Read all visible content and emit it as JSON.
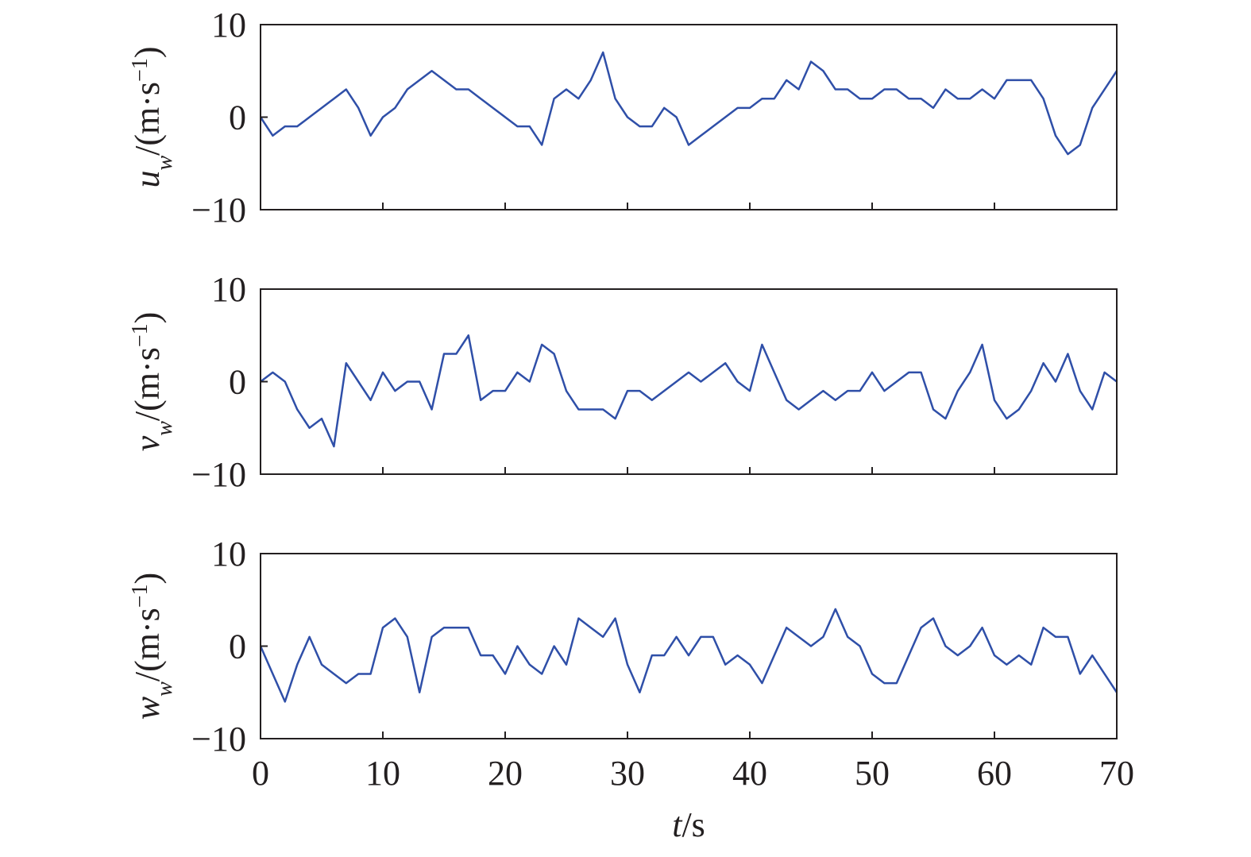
{
  "chart_data": [
    {
      "type": "line",
      "ylabel": [
        "u",
        "w",
        "/(m·s",
        "−1",
        ")"
      ],
      "color": "#2f4fa8",
      "xlim": [
        0,
        70
      ],
      "xticks": [
        0,
        10,
        20,
        30,
        40,
        50,
        60,
        70
      ],
      "ylim": [
        -10,
        10
      ],
      "yticks": [
        {
          "value": -10,
          "label": "−10"
        },
        0,
        10
      ],
      "x": [
        0,
        1,
        2,
        3,
        4,
        5,
        6,
        7,
        8,
        9,
        10,
        11,
        12,
        13,
        14,
        15,
        16,
        17,
        18,
        19,
        20,
        21,
        22,
        23,
        24,
        25,
        26,
        27,
        28,
        29,
        30,
        31,
        32,
        33,
        34,
        35,
        36,
        37,
        38,
        39,
        40,
        41,
        42,
        43,
        44,
        45,
        46,
        47,
        48,
        49,
        50,
        51,
        52,
        53,
        54,
        55,
        56,
        57,
        58,
        59,
        60,
        61,
        62,
        63,
        64,
        65,
        66,
        67,
        68,
        69,
        70
      ],
      "values": [
        0,
        -2,
        -1,
        -1,
        0,
        1,
        2,
        3,
        1,
        -2,
        0,
        1,
        3,
        4,
        5,
        4,
        3,
        3,
        2,
        1,
        0,
        -1,
        -1,
        -3,
        2,
        3,
        2,
        4,
        7,
        2,
        0,
        -1,
        -1,
        1,
        0,
        -3,
        -2,
        -1,
        0,
        1,
        1,
        2,
        2,
        4,
        3,
        6,
        5,
        3,
        3,
        2,
        2,
        3,
        3,
        2,
        2,
        1,
        3,
        2,
        2,
        3,
        2,
        4,
        4,
        4,
        2,
        -2,
        -4,
        -3,
        1,
        3,
        5
      ]
    },
    {
      "type": "line",
      "ylabel": [
        "v",
        "w",
        "/(m·s",
        "−1",
        ")"
      ],
      "color": "#2f4fa8",
      "xlim": [
        0,
        70
      ],
      "xticks": [
        0,
        10,
        20,
        30,
        40,
        50,
        60,
        70
      ],
      "ylim": [
        -10,
        10
      ],
      "yticks": [
        {
          "value": -10,
          "label": "−10"
        },
        0,
        10
      ],
      "x": [
        0,
        1,
        2,
        3,
        4,
        5,
        6,
        7,
        8,
        9,
        10,
        11,
        12,
        13,
        14,
        15,
        16,
        17,
        18,
        19,
        20,
        21,
        22,
        23,
        24,
        25,
        26,
        27,
        28,
        29,
        30,
        31,
        32,
        33,
        34,
        35,
        36,
        37,
        38,
        39,
        40,
        41,
        42,
        43,
        44,
        45,
        46,
        47,
        48,
        49,
        50,
        51,
        52,
        53,
        54,
        55,
        56,
        57,
        58,
        59,
        60,
        61,
        62,
        63,
        64,
        65,
        66,
        67,
        68,
        69,
        70
      ],
      "values": [
        0,
        1,
        0,
        -3,
        -5,
        -4,
        -7,
        2,
        0,
        -2,
        1,
        -1,
        0,
        0,
        -3,
        3,
        3,
        5,
        -2,
        -1,
        -1,
        1,
        0,
        4,
        3,
        -1,
        -3,
        -3,
        -3,
        -4,
        -1,
        -1,
        -2,
        -1,
        0,
        1,
        0,
        1,
        2,
        0,
        -1,
        4,
        1,
        -2,
        -3,
        -2,
        -1,
        -2,
        -1,
        -1,
        1,
        -1,
        0,
        1,
        1,
        -3,
        -4,
        -1,
        1,
        4,
        -2,
        -4,
        -3,
        -1,
        2,
        0,
        3,
        -1,
        -3,
        1,
        0
      ]
    },
    {
      "type": "line",
      "ylabel": [
        "w",
        "w",
        "/(m·s",
        "−1",
        ")"
      ],
      "xlabel": [
        "t",
        "/s"
      ],
      "color": "#2f4fa8",
      "xlim": [
        0,
        70
      ],
      "xticks": [
        0,
        10,
        20,
        30,
        40,
        50,
        60,
        70
      ],
      "ylim": [
        -10,
        10
      ],
      "yticks": [
        {
          "value": -10,
          "label": "−10"
        },
        0,
        10
      ],
      "x": [
        0,
        1,
        2,
        3,
        4,
        5,
        6,
        7,
        8,
        9,
        10,
        11,
        12,
        13,
        14,
        15,
        16,
        17,
        18,
        19,
        20,
        21,
        22,
        23,
        24,
        25,
        26,
        27,
        28,
        29,
        30,
        31,
        32,
        33,
        34,
        35,
        36,
        37,
        38,
        39,
        40,
        41,
        42,
        43,
        44,
        45,
        46,
        47,
        48,
        49,
        50,
        51,
        52,
        53,
        54,
        55,
        56,
        57,
        58,
        59,
        60,
        61,
        62,
        63,
        64,
        65,
        66,
        67,
        68,
        69,
        70
      ],
      "values": [
        0,
        -3,
        -6,
        -2,
        1,
        -2,
        -3,
        -4,
        -3,
        -3,
        2,
        3,
        1,
        -5,
        1,
        2,
        2,
        2,
        -1,
        -1,
        -3,
        0,
        -2,
        -3,
        0,
        -2,
        3,
        2,
        1,
        3,
        -2,
        -5,
        -1,
        -1,
        1,
        -1,
        1,
        1,
        -2,
        -1,
        -2,
        -4,
        -1,
        2,
        1,
        0,
        1,
        4,
        1,
        0,
        -3,
        -4,
        -4,
        -1,
        2,
        3,
        0,
        -1,
        0,
        2,
        -1,
        -2,
        -1,
        -2,
        2,
        1,
        1,
        -3,
        -1,
        -3,
        -5
      ]
    }
  ]
}
